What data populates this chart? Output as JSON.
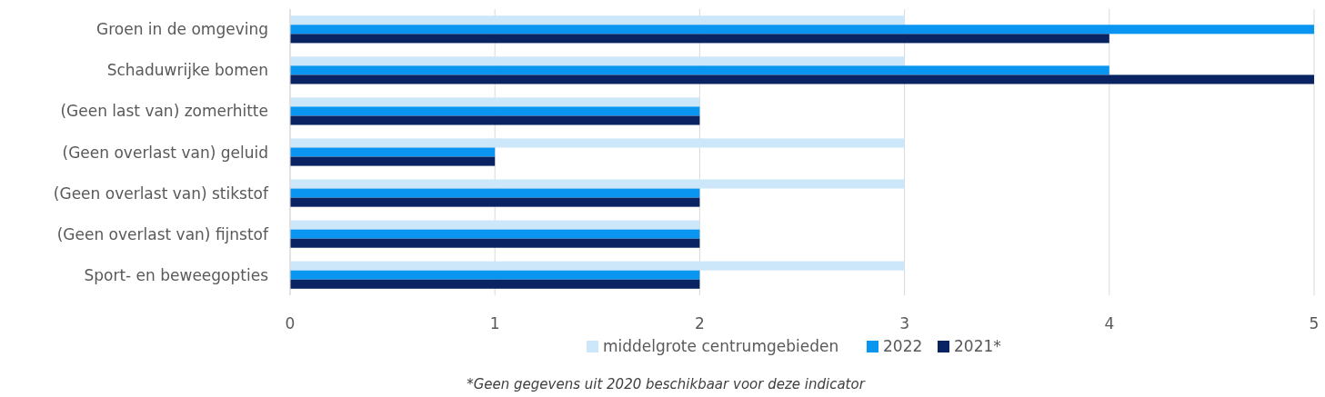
{
  "chart_data": {
    "type": "bar",
    "orientation": "horizontal",
    "categories": [
      "Groen in de omgeving",
      "Schaduwrijke bomen",
      "(Geen last van) zomerhitte",
      "(Geen overlast van) geluid",
      "(Geen overlast van) stikstof",
      "(Geen overlast van) fijnstof",
      "Sport- en beweegopties"
    ],
    "series": [
      {
        "name": "middelgrote centrumgebieden",
        "color": "#cce6fa",
        "values": [
          3,
          3,
          2,
          3,
          3,
          2,
          3
        ]
      },
      {
        "name": "2022",
        "color": "#0a96f0",
        "values": [
          5,
          4,
          2,
          1,
          2,
          2,
          2
        ]
      },
      {
        "name": "2021*",
        "color": "#0a2463",
        "values": [
          4,
          5,
          2,
          1,
          2,
          2,
          2
        ]
      }
    ],
    "xlim": [
      0,
      5
    ],
    "xticks": [
      0,
      1,
      2,
      3,
      4,
      5
    ],
    "grid": "x",
    "legend": "bottom",
    "annotations": [
      "*Geen gegevens uit 2020 beschikbaar voor deze indicator"
    ]
  }
}
